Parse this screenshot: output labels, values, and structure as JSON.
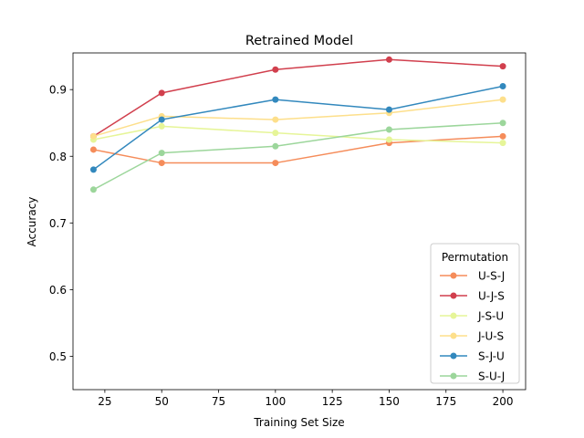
{
  "chart_data": {
    "type": "line",
    "title": "Retrained Model",
    "xlabel": "Training Set Size",
    "ylabel": "Accuracy",
    "xlim": [
      11,
      210
    ],
    "ylim": [
      0.45,
      0.955
    ],
    "xticks": [
      25,
      50,
      75,
      100,
      125,
      150,
      175,
      200
    ],
    "yticks": [
      0.5,
      0.6,
      0.7,
      0.8,
      0.9
    ],
    "ytick_labels": [
      "0.5",
      "0.6",
      "0.7",
      "0.8",
      "0.9"
    ],
    "grid": false,
    "legend": {
      "title": "Permutation",
      "placement": "lower-right"
    },
    "x": [
      20,
      50,
      100,
      150,
      200
    ],
    "series": [
      {
        "name": "U-S-J",
        "color": "#f58c5a",
        "values": [
          0.81,
          0.79,
          0.79,
          0.82,
          0.83
        ]
      },
      {
        "name": "U-J-S",
        "color": "#d13f4d",
        "values": [
          0.83,
          0.895,
          0.93,
          0.945,
          0.935
        ]
      },
      {
        "name": "J-S-U",
        "color": "#e6f598",
        "values": [
          0.825,
          0.845,
          0.835,
          0.825,
          0.82
        ]
      },
      {
        "name": "J-U-S",
        "color": "#fddf8b",
        "values": [
          0.83,
          0.86,
          0.855,
          0.865,
          0.885
        ]
      },
      {
        "name": "S-J-U",
        "color": "#3288bd",
        "values": [
          0.78,
          0.855,
          0.885,
          0.87,
          0.905
        ]
      },
      {
        "name": "S-U-J",
        "color": "#9cd69b",
        "values": [
          0.75,
          0.805,
          0.815,
          0.84,
          0.85
        ]
      }
    ]
  }
}
